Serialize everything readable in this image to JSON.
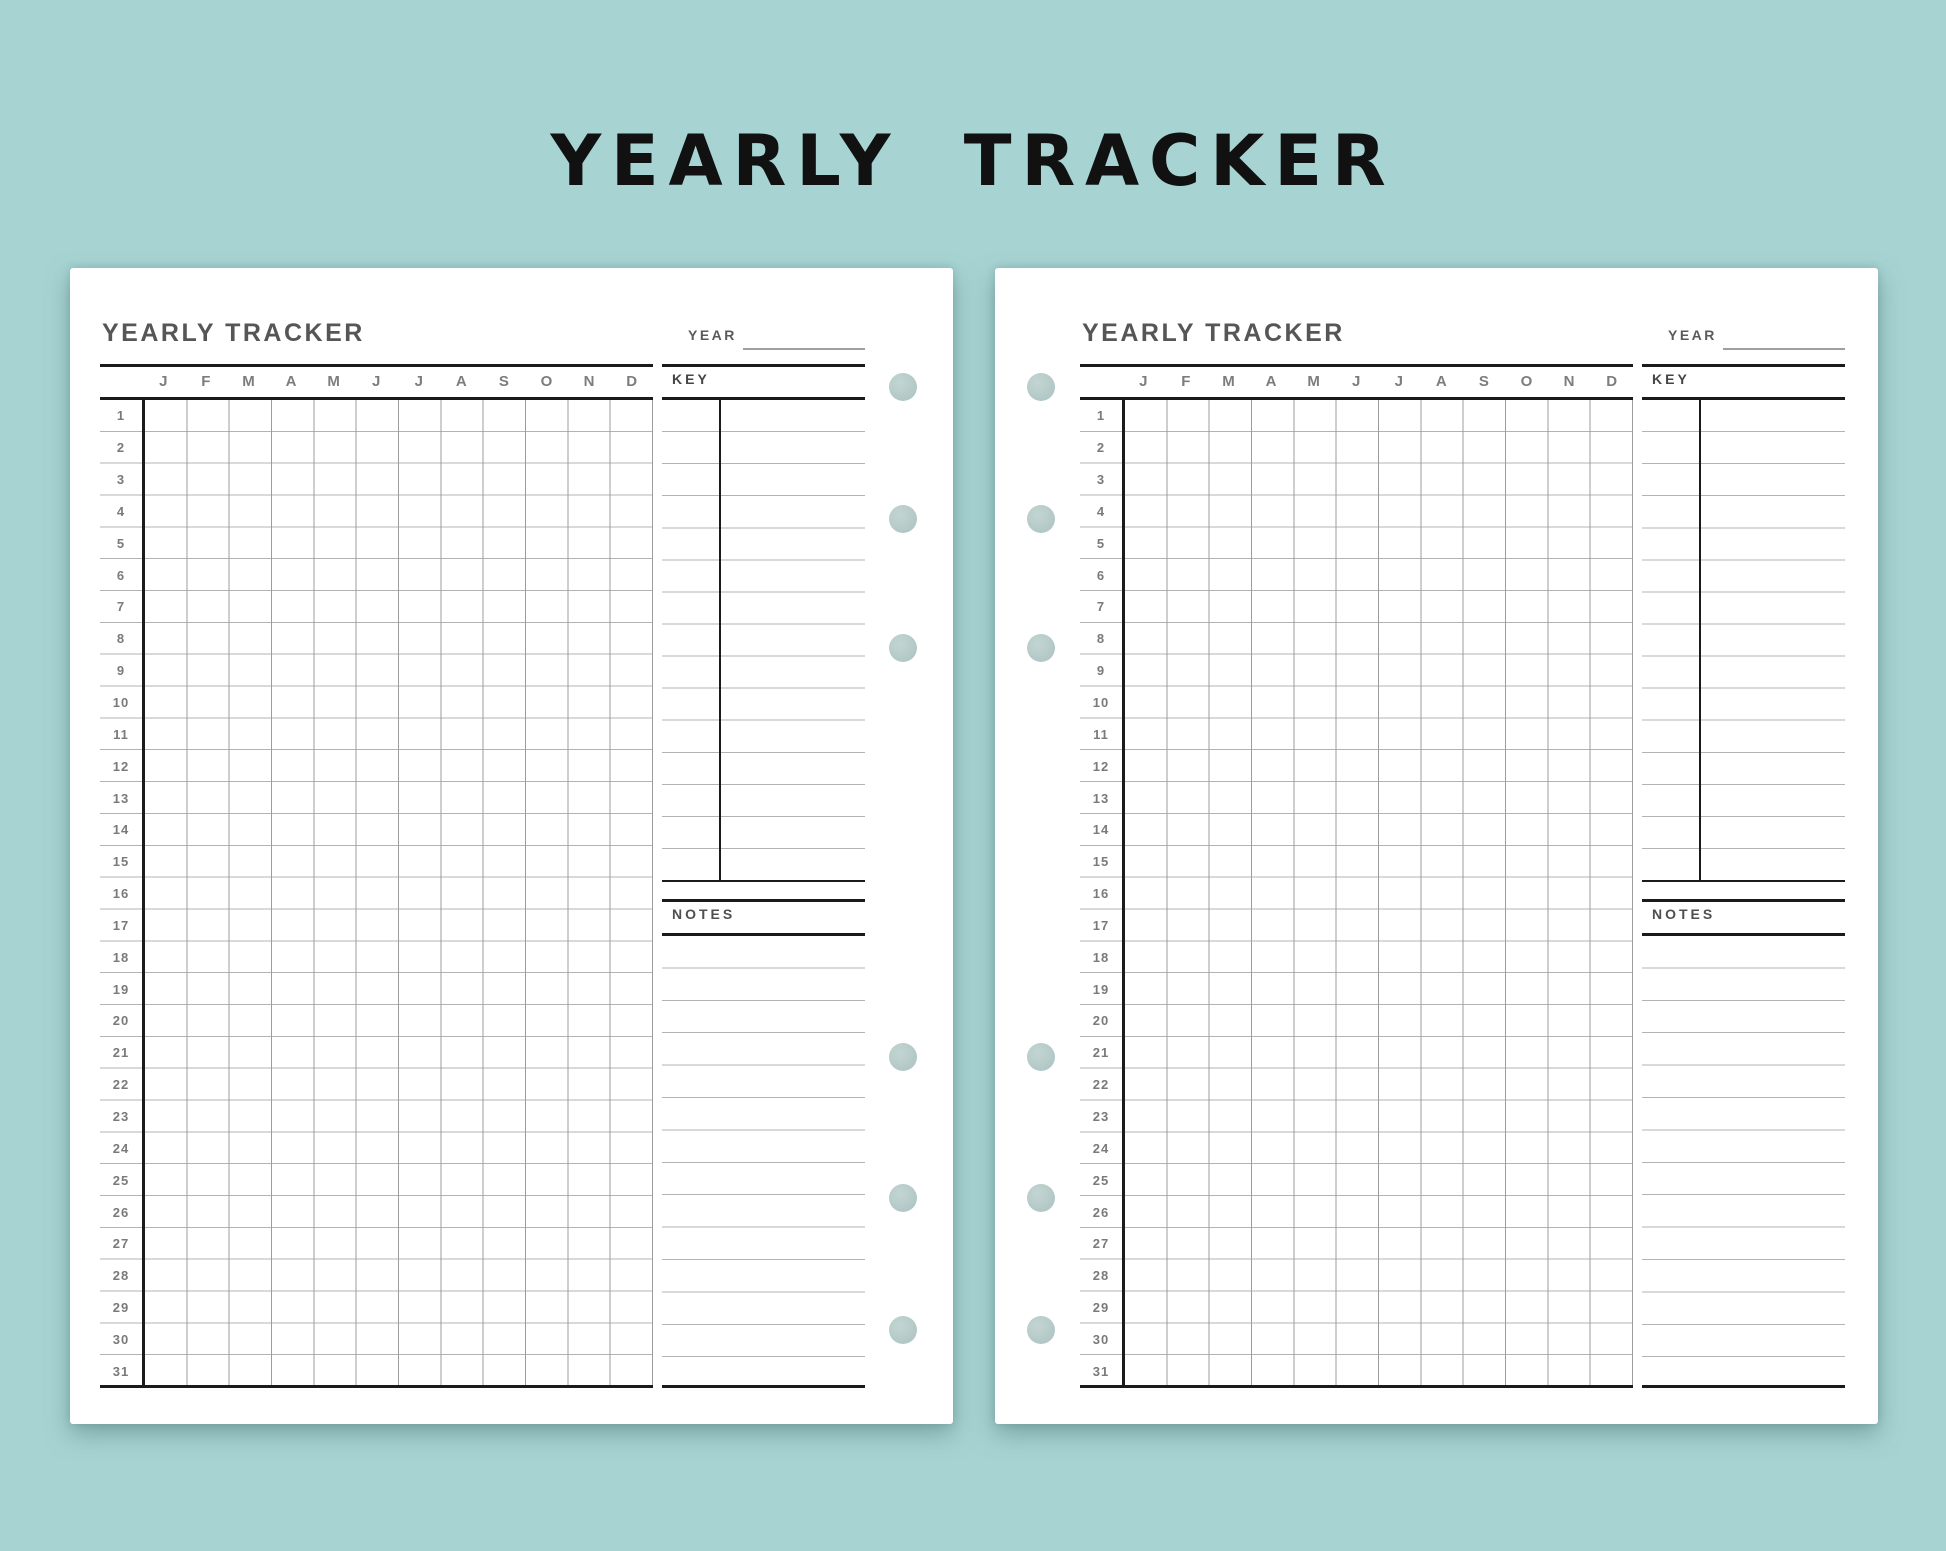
{
  "main_title": "YEARLY TRACKER",
  "sheet": {
    "title": "YEARLY TRACKER",
    "year": {
      "label": "YEAR",
      "value": ""
    },
    "key": {
      "label": "KEY"
    },
    "notes": {
      "label": "NOTES"
    },
    "months": [
      "J",
      "F",
      "M",
      "A",
      "M",
      "J",
      "J",
      "A",
      "S",
      "O",
      "N",
      "D"
    ],
    "days": [
      "1",
      "2",
      "3",
      "4",
      "5",
      "6",
      "7",
      "8",
      "9",
      "10",
      "11",
      "12",
      "13",
      "14",
      "15",
      "16",
      "17",
      "18",
      "19",
      "20",
      "21",
      "22",
      "23",
      "24",
      "25",
      "26",
      "27",
      "28",
      "29",
      "30",
      "31"
    ]
  },
  "colors": {
    "background": "#a7d4d3",
    "paper": "#ffffff",
    "hole": "#b6cbc9",
    "heavy_line": "#1b1b1b",
    "column_line": "#9c9c9c",
    "row_line": "#b3b3b3",
    "title_text": "#111111",
    "header_text": "#565656",
    "muted_text": "#7d7d7d"
  }
}
